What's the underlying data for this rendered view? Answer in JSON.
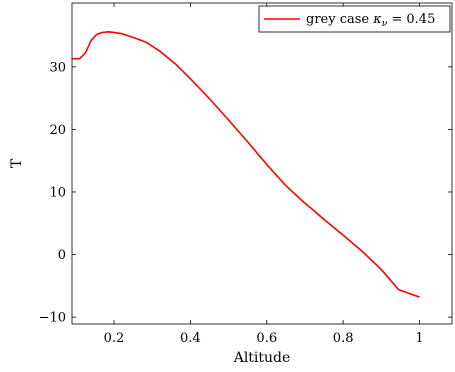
{
  "chart_data": {
    "type": "line",
    "xlabel": "Altitude",
    "ylabel": "T",
    "xlim": [
      0.09,
      1.085
    ],
    "ylim": [
      -11.1,
      40.2
    ],
    "x_ticks": [
      0.2,
      0.4,
      0.6,
      0.8,
      1
    ],
    "x_tick_labels": [
      "0.2",
      "0.4",
      "0.6",
      "0.8",
      "1"
    ],
    "y_ticks": [
      -10,
      0,
      10,
      20,
      30
    ],
    "y_tick_labels": [
      "−10",
      "0",
      "10",
      "20",
      "30"
    ],
    "grid": false,
    "legend_position": "top-right",
    "series": [
      {
        "name": "grey case κ_ν = 0.45",
        "legend_prefix": "grey case ",
        "legend_symbol": "κ",
        "legend_subscript": "ν",
        "legend_suffix": " = 0.45",
        "color": "#ff0000",
        "x": [
          0.09,
          0.11,
          0.125,
          0.14,
          0.155,
          0.17,
          0.185,
          0.2,
          0.22,
          0.25,
          0.285,
          0.32,
          0.36,
          0.4,
          0.45,
          0.5,
          0.55,
          0.6,
          0.65,
          0.7,
          0.72,
          0.75,
          0.8,
          0.85,
          0.9,
          0.945,
          1.0
        ],
        "y": [
          31.3,
          31.3,
          32.2,
          34.2,
          35.2,
          35.5,
          35.6,
          35.5,
          35.3,
          34.7,
          33.9,
          32.5,
          30.5,
          28.1,
          24.9,
          21.5,
          18.0,
          14.4,
          11.0,
          8.2,
          7.2,
          5.6,
          3.1,
          0.5,
          -2.4,
          -5.6,
          -6.8
        ]
      }
    ]
  }
}
